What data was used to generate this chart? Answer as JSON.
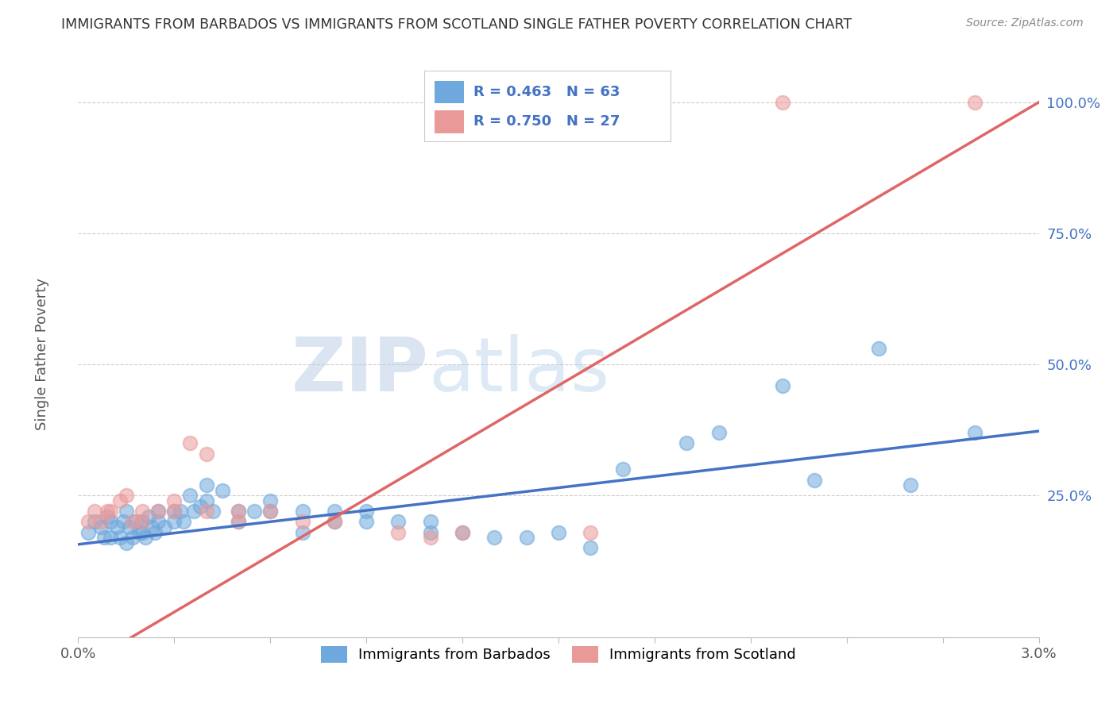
{
  "title": "IMMIGRANTS FROM BARBADOS VS IMMIGRANTS FROM SCOTLAND SINGLE FATHER POVERTY CORRELATION CHART",
  "source": "Source: ZipAtlas.com",
  "ylabel": "Single Father Poverty",
  "xlim": [
    0.0,
    0.03
  ],
  "ylim": [
    -0.02,
    1.06
  ],
  "ytick_vals": [
    0.25,
    0.5,
    0.75,
    1.0
  ],
  "xtick_vals": [
    0.0,
    0.003,
    0.006,
    0.009,
    0.012,
    0.015,
    0.018,
    0.021,
    0.024,
    0.027,
    0.03
  ],
  "barbados_R": "0.463",
  "barbados_N": "63",
  "scotland_R": "0.750",
  "scotland_N": "27",
  "barbados_color": "#6fa8dc",
  "scotland_color": "#ea9999",
  "trendline_barbados_color": "#4472c4",
  "trendline_scotland_color": "#e06666",
  "legend_label_barbados": "Immigrants from Barbados",
  "legend_label_scotland": "Immigrants from Scotland",
  "watermark_zip": "ZIP",
  "watermark_atlas": "atlas",
  "label_color": "#4472c4",
  "background_color": "#ffffff",
  "grid_color": "#cccccc",
  "barbados_x": [
    0.0003,
    0.0005,
    0.0007,
    0.0008,
    0.0009,
    0.001,
    0.001,
    0.0012,
    0.0013,
    0.0014,
    0.0015,
    0.0015,
    0.0016,
    0.0017,
    0.0018,
    0.0019,
    0.002,
    0.002,
    0.0021,
    0.0022,
    0.0023,
    0.0024,
    0.0025,
    0.0025,
    0.0027,
    0.003,
    0.003,
    0.0032,
    0.0033,
    0.0035,
    0.0036,
    0.0038,
    0.004,
    0.004,
    0.0042,
    0.0045,
    0.005,
    0.005,
    0.0055,
    0.006,
    0.006,
    0.007,
    0.007,
    0.008,
    0.008,
    0.009,
    0.009,
    0.01,
    0.011,
    0.011,
    0.012,
    0.013,
    0.014,
    0.015,
    0.016,
    0.017,
    0.019,
    0.02,
    0.022,
    0.023,
    0.025,
    0.026,
    0.028
  ],
  "barbados_y": [
    0.18,
    0.2,
    0.19,
    0.17,
    0.21,
    0.17,
    0.2,
    0.19,
    0.17,
    0.2,
    0.16,
    0.22,
    0.19,
    0.17,
    0.2,
    0.18,
    0.18,
    0.2,
    0.17,
    0.21,
    0.19,
    0.18,
    0.2,
    0.22,
    0.19,
    0.22,
    0.2,
    0.22,
    0.2,
    0.25,
    0.22,
    0.23,
    0.27,
    0.24,
    0.22,
    0.26,
    0.22,
    0.2,
    0.22,
    0.24,
    0.22,
    0.22,
    0.18,
    0.22,
    0.2,
    0.22,
    0.2,
    0.2,
    0.18,
    0.2,
    0.18,
    0.17,
    0.17,
    0.18,
    0.15,
    0.3,
    0.35,
    0.37,
    0.46,
    0.28,
    0.53,
    0.27,
    0.37
  ],
  "scotland_x": [
    0.0003,
    0.0005,
    0.0007,
    0.0009,
    0.001,
    0.0013,
    0.0015,
    0.0017,
    0.002,
    0.002,
    0.0025,
    0.003,
    0.003,
    0.0035,
    0.004,
    0.004,
    0.005,
    0.005,
    0.006,
    0.007,
    0.008,
    0.01,
    0.011,
    0.012,
    0.016,
    0.022,
    0.028
  ],
  "scotland_y": [
    0.2,
    0.22,
    0.2,
    0.22,
    0.22,
    0.24,
    0.25,
    0.2,
    0.22,
    0.2,
    0.22,
    0.22,
    0.24,
    0.35,
    0.33,
    0.22,
    0.22,
    0.2,
    0.22,
    0.2,
    0.2,
    0.18,
    0.17,
    0.18,
    0.18,
    1.0,
    1.0
  ],
  "barbados_trend": [
    0.157,
    0.373
  ],
  "scotland_trend": [
    -0.08,
    1.0
  ]
}
